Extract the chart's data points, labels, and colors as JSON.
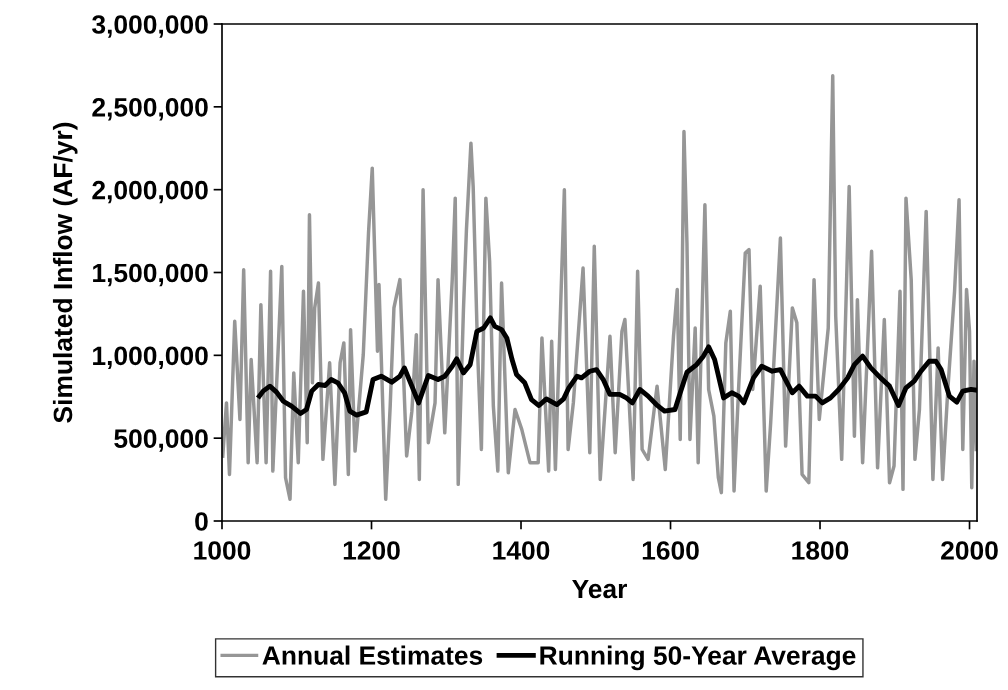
{
  "chart_data": {
    "type": "line",
    "xlabel": "Year",
    "ylabel": "Simulated Inflow (AF/yr)",
    "xlim": [
      1000,
      2010
    ],
    "xticks": [
      1000,
      1200,
      1400,
      1600,
      1800,
      2000
    ],
    "ylim": [
      0,
      3000000
    ],
    "yticks": [
      {
        "value": 0,
        "label": "0"
      },
      {
        "value": 500000,
        "label": "500,000"
      },
      {
        "value": 1000000,
        "label": "1,000,000"
      },
      {
        "value": 1500000,
        "label": "1,500,000"
      },
      {
        "value": 2000000,
        "label": "2,000,000"
      },
      {
        "value": 2500000,
        "label": "2,500,000"
      },
      {
        "value": 3000000,
        "label": "3,000,000"
      }
    ],
    "grid": false,
    "legend": "bottom",
    "marker": "none",
    "line_style": "solid",
    "series": [
      {
        "name": "Annual Estimates",
        "color": "#969696",
        "x": [
          1001,
          1006,
          1010,
          1017,
          1024,
          1029,
          1035,
          1039,
          1047,
          1052,
          1059,
          1065,
          1068,
          1080,
          1085,
          1091,
          1096,
          1102,
          1109,
          1114,
          1117,
          1121,
          1124,
          1129,
          1135,
          1144,
          1151,
          1158,
          1163,
          1169,
          1172,
          1178,
          1189,
          1196,
          1201,
          1208,
          1210,
          1219,
          1225,
          1230,
          1238,
          1247,
          1254,
          1260,
          1264,
          1269,
          1276,
          1285,
          1289,
          1298,
          1308,
          1312,
          1316,
          1323,
          1327,
          1333,
          1336,
          1342,
          1347,
          1353,
          1358,
          1363,
          1369,
          1374,
          1383,
          1392,
          1401,
          1412,
          1423,
          1428,
          1437,
          1441,
          1446,
          1458,
          1463,
          1470,
          1483,
          1492,
          1498,
          1506,
          1519,
          1526,
          1535,
          1539,
          1550,
          1556,
          1562,
          1570,
          1582,
          1593,
          1604,
          1609,
          1613,
          1618,
          1622,
          1626,
          1633,
          1637,
          1646,
          1651,
          1658,
          1664,
          1668,
          1674,
          1680,
          1685,
          1691,
          1700,
          1705,
          1710,
          1720,
          1728,
          1734,
          1747,
          1754,
          1763,
          1769,
          1776,
          1785,
          1792,
          1799,
          1811,
          1817,
          1821,
          1829,
          1839,
          1846,
          1850,
          1857,
          1869,
          1877,
          1886,
          1893,
          1899,
          1907,
          1911,
          1915,
          1922,
          1927,
          1933,
          1942,
          1951,
          1958,
          1964,
          1971,
          1980,
          1986,
          1991,
          1996,
          2000,
          2003,
          2006,
          2009
        ],
        "values": [
          392000,
          713000,
          281000,
          1206000,
          613000,
          1517000,
          352000,
          975000,
          352000,
          1306000,
          352000,
          1507000,
          301000,
          1537000,
          261000,
          131000,
          894000,
          352000,
          1387000,
          472000,
          1849000,
          834000,
          1286000,
          1437000,
          372000,
          955000,
          221000,
          955000,
          1075000,
          281000,
          1155000,
          422000,
          1005000,
          1738000,
          2130000,
          1025000,
          1427000,
          131000,
          693000,
          1286000,
          1457000,
          392000,
          663000,
          1125000,
          251000,
          1999000,
          472000,
          713000,
          1457000,
          532000,
          1457000,
          1949000,
          221000,
          1276000,
          1758000,
          2281000,
          2019000,
          1015000,
          432000,
          1949000,
          1567000,
          693000,
          301000,
          1437000,
          291000,
          673000,
          553000,
          352000,
          352000,
          1105000,
          301000,
          1085000,
          311000,
          1999000,
          432000,
          713000,
          1527000,
          412000,
          1658000,
          251000,
          1115000,
          412000,
          1145000,
          1216000,
          251000,
          1507000,
          432000,
          372000,
          814000,
          311000,
          1115000,
          1397000,
          492000,
          2351000,
          1678000,
          492000,
          1165000,
          352000,
          1909000,
          794000,
          633000,
          261000,
          171000,
          1075000,
          1266000,
          181000,
          794000,
          1618000,
          1638000,
          794000,
          1417000,
          181000,
          593000,
          1708000,
          452000,
          1286000,
          1196000,
          281000,
          231000,
          1457000,
          613000,
          1165000,
          2687000,
          1236000,
          372000,
          2019000,
          512000,
          1336000,
          352000,
          1628000,
          321000,
          1216000,
          231000,
          332000,
          1387000,
          191000,
          1949000,
          1457000,
          372000,
          673000,
          1869000,
          251000,
          1045000,
          251000,
          794000,
          1387000,
          1939000,
          432000,
          1397000,
          1145000,
          201000,
          965000,
          432000
        ]
      },
      {
        "name": "Running 50-Year Average",
        "color": "#000000",
        "x": [
          1050,
          1055,
          1064,
          1073,
          1082,
          1093,
          1105,
          1113,
          1120,
          1129,
          1138,
          1146,
          1155,
          1164,
          1171,
          1180,
          1193,
          1202,
          1213,
          1227,
          1238,
          1244,
          1254,
          1263,
          1276,
          1289,
          1298,
          1308,
          1314,
          1323,
          1332,
          1341,
          1350,
          1359,
          1365,
          1374,
          1381,
          1388,
          1394,
          1405,
          1414,
          1424,
          1434,
          1448,
          1457,
          1464,
          1475,
          1481,
          1492,
          1501,
          1510,
          1519,
          1532,
          1541,
          1549,
          1559,
          1570,
          1581,
          1592,
          1606,
          1613,
          1622,
          1635,
          1644,
          1651,
          1659,
          1671,
          1682,
          1691,
          1698,
          1711,
          1722,
          1736,
          1747,
          1756,
          1763,
          1772,
          1783,
          1794,
          1803,
          1814,
          1825,
          1837,
          1846,
          1857,
          1868,
          1881,
          1893,
          1905,
          1915,
          1926,
          1935,
          1946,
          1955,
          1962,
          1973,
          1983,
          1991,
          2002,
          2009
        ],
        "values": [
          754000,
          784000,
          814000,
          778000,
          723000,
          693000,
          649000,
          673000,
          784000,
          824000,
          818000,
          854000,
          834000,
          774000,
          663000,
          639000,
          659000,
          854000,
          874000,
          838000,
          874000,
          924000,
          814000,
          713000,
          878000,
          854000,
          874000,
          934000,
          979000,
          894000,
          944000,
          1145000,
          1165000,
          1226000,
          1175000,
          1155000,
          1105000,
          975000,
          884000,
          834000,
          733000,
          697000,
          737000,
          703000,
          737000,
          804000,
          874000,
          864000,
          904000,
          914000,
          854000,
          764000,
          764000,
          743000,
          713000,
          794000,
          754000,
          703000,
          663000,
          673000,
          774000,
          898000,
          944000,
          995000,
          1051000,
          975000,
          743000,
          774000,
          754000,
          713000,
          864000,
          934000,
          904000,
          914000,
          834000,
          774000,
          814000,
          754000,
          754000,
          713000,
          743000,
          794000,
          864000,
          944000,
          995000,
          924000,
          864000,
          814000,
          697000,
          804000,
          844000,
          904000,
          964000,
          964000,
          914000,
          754000,
          717000,
          784000,
          794000,
          790000
        ]
      }
    ]
  }
}
